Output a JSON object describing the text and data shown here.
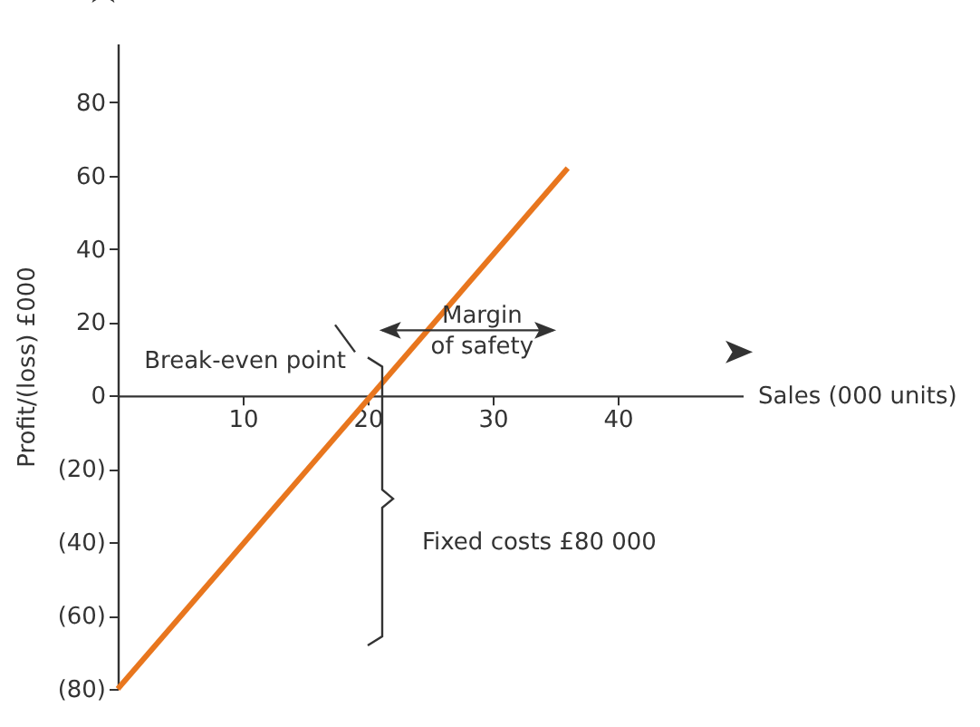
{
  "chart_data": {
    "type": "line",
    "xlabel": "Sales (000 units)",
    "ylabel": "Profit/(loss) £000",
    "series": [
      {
        "color": "#e8761e",
        "x": [
          0,
          36
        ],
        "values": [
          -80,
          62
        ]
      }
    ],
    "xlim": [
      0,
      50
    ],
    "xticks": [
      10,
      20,
      30,
      40
    ],
    "ylim": [
      -80,
      96
    ],
    "yticks": [
      {
        "value": -80,
        "label": "(80)"
      },
      {
        "value": -60,
        "label": "(60)"
      },
      {
        "value": -40,
        "label": "(40)"
      },
      {
        "value": -20,
        "label": "(20)"
      },
      0,
      20,
      40,
      60,
      80
    ],
    "annotations": [
      {
        "text": "Break-even point",
        "x": 20,
        "y": 0
      },
      "Margin of safety",
      "Fixed costs £80 000"
    ],
    "grid": false,
    "legend": false,
    "marker": "none",
    "line_style": "solid"
  }
}
